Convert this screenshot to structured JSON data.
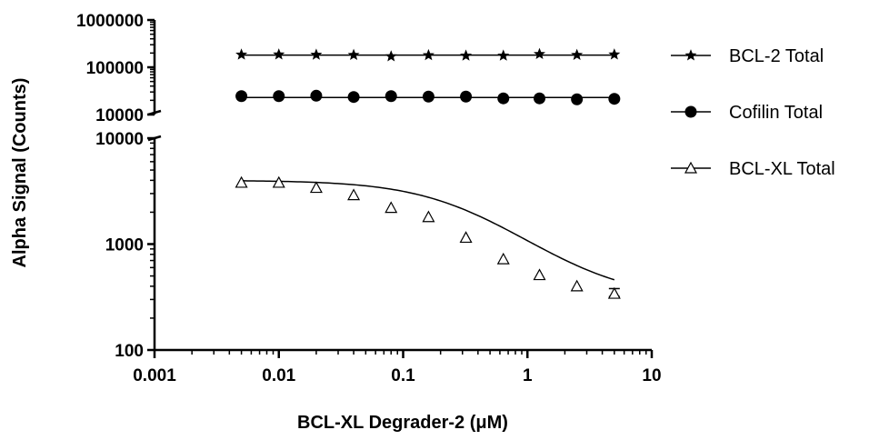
{
  "chart_data": {
    "type": "scatter",
    "xlabel": "BCL-XL Degrader-2 (μM)",
    "ylabel": "Alpha Signal (Counts)",
    "x_scale": "log",
    "y_scale": "log",
    "y_axis_break": true,
    "xlim": [
      0.001,
      10
    ],
    "ylim_lower": [
      100,
      10000
    ],
    "ylim_upper": [
      10000,
      1000000
    ],
    "x_tick_labels": [
      "0.001",
      "0.01",
      "0.1",
      "1",
      "10"
    ],
    "y_tick_labels_lower": [
      "100",
      "1000",
      "10000"
    ],
    "y_tick_labels_upper": [
      "10000",
      "100000",
      "1000000"
    ],
    "legend_position": "right",
    "x": [
      0.005,
      0.01,
      0.02,
      0.04,
      0.08,
      0.16,
      0.32,
      0.64,
      1.25,
      2.5,
      5
    ],
    "series": [
      {
        "name": "BCL-2 Total",
        "marker": "star",
        "values": [
          185000,
          186000,
          184000,
          182000,
          170000,
          180000,
          176000,
          176000,
          190000,
          182000,
          186000
        ],
        "fit": "flat",
        "fit_value": 181000
      },
      {
        "name": "Cofilin Total",
        "marker": "filled-circle",
        "values": [
          24500,
          24500,
          25000,
          23500,
          24500,
          24000,
          24000,
          22000,
          22000,
          21000,
          21500
        ],
        "fit": "flat",
        "fit_value": 23000
      },
      {
        "name": "BCL-XL Total",
        "marker": "open-triangle",
        "values": [
          3800,
          3800,
          3400,
          2900,
          2200,
          1800,
          1150,
          720,
          510,
          400,
          340
        ],
        "error_last": [
          320,
          380
        ],
        "fit": "sigmoid",
        "fit_params": {
          "top": 4000,
          "bottom": 300,
          "ic50": 0.3,
          "hill": 1.1
        }
      }
    ]
  }
}
